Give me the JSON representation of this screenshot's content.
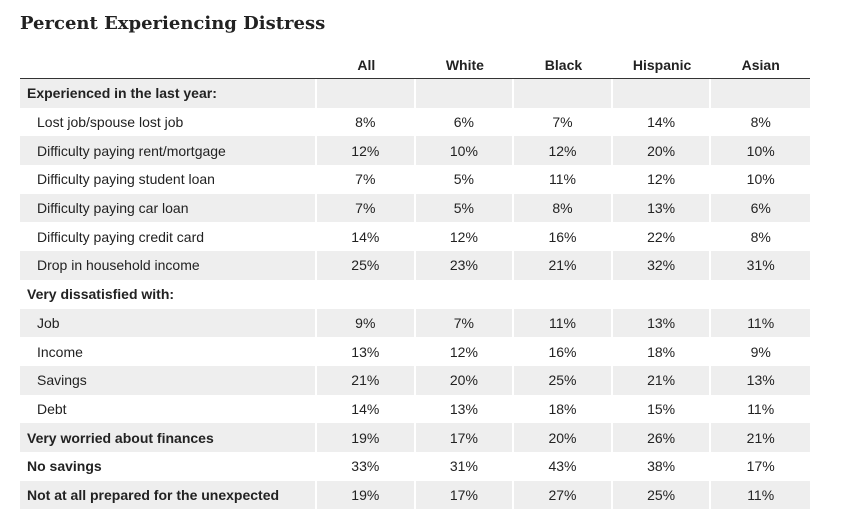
{
  "chart_data": {
    "type": "table",
    "title": "Percent Experiencing Distress",
    "columns": [
      "All",
      "White",
      "Black",
      "Hispanic",
      "Asian"
    ],
    "rows": [
      {
        "kind": "section",
        "label": "Experienced in the last year:",
        "values": []
      },
      {
        "kind": "item",
        "label": "Lost job/spouse lost job",
        "values": [
          "8%",
          "6%",
          "7%",
          "14%",
          "8%"
        ]
      },
      {
        "kind": "item",
        "label": "Difficulty paying rent/mortgage",
        "values": [
          "12%",
          "10%",
          "12%",
          "20%",
          "10%"
        ]
      },
      {
        "kind": "item",
        "label": "Difficulty paying student loan",
        "values": [
          "7%",
          "5%",
          "11%",
          "12%",
          "10%"
        ]
      },
      {
        "kind": "item",
        "label": "Difficulty paying car loan",
        "values": [
          "7%",
          "5%",
          "8%",
          "13%",
          "6%"
        ]
      },
      {
        "kind": "item",
        "label": "Difficulty paying credit card",
        "values": [
          "14%",
          "12%",
          "16%",
          "22%",
          "8%"
        ]
      },
      {
        "kind": "item",
        "label": "Drop in household income",
        "values": [
          "25%",
          "23%",
          "21%",
          "32%",
          "31%"
        ]
      },
      {
        "kind": "section",
        "label": "Very dissatisfied with:",
        "values": []
      },
      {
        "kind": "item",
        "label": "Job",
        "values": [
          "9%",
          "7%",
          "11%",
          "13%",
          "11%"
        ]
      },
      {
        "kind": "item",
        "label": "Income",
        "values": [
          "13%",
          "12%",
          "16%",
          "18%",
          "9%"
        ]
      },
      {
        "kind": "item",
        "label": "Savings",
        "values": [
          "21%",
          "20%",
          "25%",
          "21%",
          "13%"
        ]
      },
      {
        "kind": "item",
        "label": "Debt",
        "values": [
          "14%",
          "13%",
          "18%",
          "15%",
          "11%"
        ]
      },
      {
        "kind": "summary",
        "label": "Very worried about finances",
        "values": [
          "19%",
          "17%",
          "20%",
          "26%",
          "21%"
        ]
      },
      {
        "kind": "summary",
        "label": "No savings",
        "values": [
          "33%",
          "31%",
          "43%",
          "38%",
          "17%"
        ]
      },
      {
        "kind": "summary",
        "label": "Not at all prepared for the unexpected",
        "values": [
          "19%",
          "17%",
          "27%",
          "25%",
          "11%"
        ]
      }
    ],
    "colors": {
      "stripe": "#eeeeee",
      "text": "#222222",
      "header_rule": "#333333"
    }
  }
}
